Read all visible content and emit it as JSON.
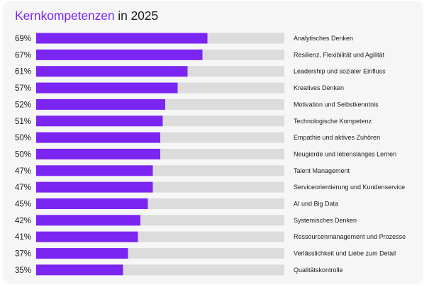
{
  "header": {
    "title_highlight": "Kernkompetenzen",
    "title_rest": " in 2025"
  },
  "colors": {
    "bar": "#7b25f2",
    "track": "#dcdcdc",
    "background": "#f6f6f6",
    "text": "#1b1b1b"
  },
  "chart_data": {
    "type": "bar",
    "orientation": "horizontal",
    "title": "Kernkompetenzen in 2025",
    "xlim": [
      0,
      100
    ],
    "value_suffix": "%",
    "categories": [
      "Analytisches Denken",
      "Resilienz, Flexibilität und Agilität",
      "Leadership und sozialer Einfluss",
      "Kreatives Denken",
      "Motivation und Selbstkenntnis",
      "Technologische Kompetenz",
      "Empathie und aktives Zuhören",
      "Neugierde und lebenslanges Lernen",
      "Talent Management",
      "Serviceorientierung und Kundenservice",
      "AI und Big Data",
      "Systemisches Denken",
      "Ressourcenmanagement und Prozesse",
      "Verlässlichkeit und Liebe zum Detail",
      "Qualitätskontrolle"
    ],
    "values": [
      69,
      67,
      61,
      57,
      52,
      51,
      50,
      50,
      47,
      47,
      45,
      42,
      41,
      37,
      35
    ],
    "labels": [
      "69%",
      "67%",
      "61%",
      "57%",
      "52%",
      "51%",
      "50%",
      "50%",
      "47%",
      "47%",
      "45%",
      "42%",
      "41%",
      "37%",
      "35%"
    ]
  }
}
